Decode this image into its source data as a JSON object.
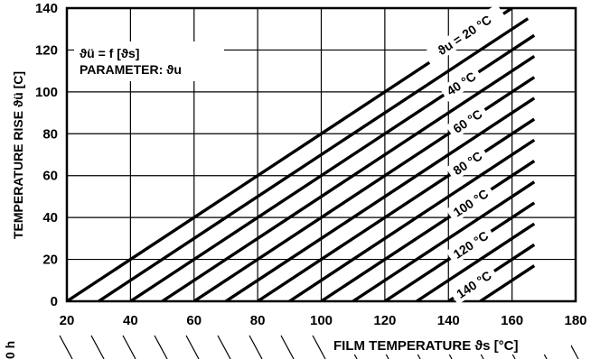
{
  "chart_data": {
    "type": "line",
    "title": "",
    "xlabel": "FILM TEMPERATURE ϑs [°C]",
    "ylabel": "TEMPERATURE RISE ϑü [C]",
    "xlim": [
      20,
      180
    ],
    "ylim": [
      0,
      140
    ],
    "x_ticks": [
      "20",
      "40",
      "60",
      "80",
      "100",
      "120",
      "140",
      "160",
      "180"
    ],
    "y_ticks": [
      "0",
      "20",
      "40",
      "60",
      "80",
      "100",
      "120",
      "140"
    ],
    "grid": true,
    "annotation": {
      "line1": "ϑü = f [ϑs]",
      "line2": "PARAMETER: ϑu"
    },
    "cut_off_left_label": "0 h",
    "series": [
      {
        "name": "ϑu = 20 °C",
        "x": [
          20,
          160
        ],
        "y": [
          0,
          140
        ]
      },
      {
        "name": "",
        "x": [
          30,
          165
        ],
        "y": [
          0,
          135
        ]
      },
      {
        "name": "40 °C",
        "x": [
          40,
          167
        ],
        "y": [
          0,
          127
        ]
      },
      {
        "name": "",
        "x": [
          50,
          167
        ],
        "y": [
          0,
          117
        ]
      },
      {
        "name": "60 °C",
        "x": [
          60,
          167
        ],
        "y": [
          0,
          107
        ]
      },
      {
        "name": "",
        "x": [
          70,
          167
        ],
        "y": [
          0,
          97
        ]
      },
      {
        "name": "80 °C",
        "x": [
          80,
          167
        ],
        "y": [
          0,
          87
        ]
      },
      {
        "name": "",
        "x": [
          90,
          167
        ],
        "y": [
          0,
          77
        ]
      },
      {
        "name": "100 °C",
        "x": [
          100,
          167
        ],
        "y": [
          0,
          67
        ]
      },
      {
        "name": "",
        "x": [
          110,
          167
        ],
        "y": [
          0,
          57
        ]
      },
      {
        "name": "120 °C",
        "x": [
          120,
          167
        ],
        "y": [
          0,
          47
        ]
      },
      {
        "name": "",
        "x": [
          130,
          167
        ],
        "y": [
          0,
          37
        ]
      },
      {
        "name": "140 °C",
        "x": [
          140,
          167
        ],
        "y": [
          0,
          27
        ]
      },
      {
        "name": "",
        "x": [
          150,
          167
        ],
        "y": [
          0,
          17
        ]
      }
    ]
  }
}
